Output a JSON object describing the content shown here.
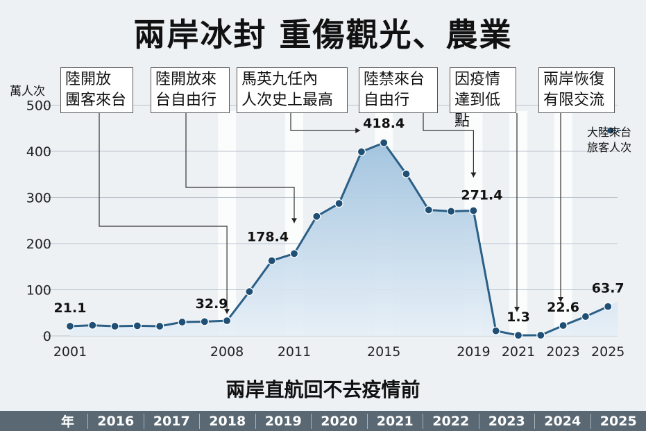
{
  "title": "兩岸冰封  重傷觀光、農業",
  "unit_label": "萬人次",
  "legend_label": "大陸來台\n旅客人次",
  "subtitle": "兩岸直航回不去疫情前",
  "year_bar": {
    "label": "年",
    "years": [
      "2016",
      "2017",
      "2018",
      "2019",
      "2020",
      "2021",
      "2022",
      "2023",
      "2024",
      "2025"
    ]
  },
  "annotations": [
    {
      "text": "陸開放\n團客來台",
      "year": 2008
    },
    {
      "text": "陸開放來\n台自由行",
      "year": 2011
    },
    {
      "text": "馬英九任內\n人次史上最高",
      "year": 2015
    },
    {
      "text": "陸禁來台\n自由行",
      "year": 2019
    },
    {
      "text": "因疫情\n達到低點",
      "year": 2021
    },
    {
      "text": "兩岸恢復\n有限交流",
      "year": 2023
    }
  ],
  "colors": {
    "line": "#2a5f86",
    "area_top": "#a9c9e2",
    "area_bottom": "#e4eef7",
    "band": "#ffffff"
  },
  "chart_data": {
    "type": "line",
    "x": [
      2001,
      2002,
      2003,
      2004,
      2005,
      2006,
      2007,
      2008,
      2009,
      2010,
      2011,
      2012,
      2013,
      2014,
      2015,
      2016,
      2017,
      2018,
      2019,
      2020,
      2021,
      2022,
      2023,
      2024,
      2025
    ],
    "series": [
      {
        "name": "大陸來台旅客人次",
        "values": [
          21.1,
          23,
          21,
          22,
          21,
          30,
          31,
          32.9,
          96,
          163,
          178.4,
          259,
          287,
          399,
          418.4,
          351,
          273,
          270,
          271.4,
          11,
          1.3,
          1.5,
          22.6,
          42,
          63.7
        ]
      }
    ],
    "labeled_points": [
      {
        "x": 2001,
        "label": "21.1"
      },
      {
        "x": 2008,
        "label": "32.9"
      },
      {
        "x": 2011,
        "label": "178.4"
      },
      {
        "x": 2015,
        "label": "418.4"
      },
      {
        "x": 2019,
        "label": "271.4"
      },
      {
        "x": 2021,
        "label": "1.3"
      },
      {
        "x": 2023,
        "label": "22.6"
      },
      {
        "x": 2025,
        "label": "63.7"
      }
    ],
    "x_ticks": [
      2001,
      2008,
      2011,
      2015,
      2019,
      2021,
      2023,
      2025
    ],
    "y_ticks": [
      0,
      100,
      200,
      300,
      400,
      500
    ],
    "ylim": [
      0,
      500
    ],
    "ylabel": "萬人次",
    "grid": true
  }
}
